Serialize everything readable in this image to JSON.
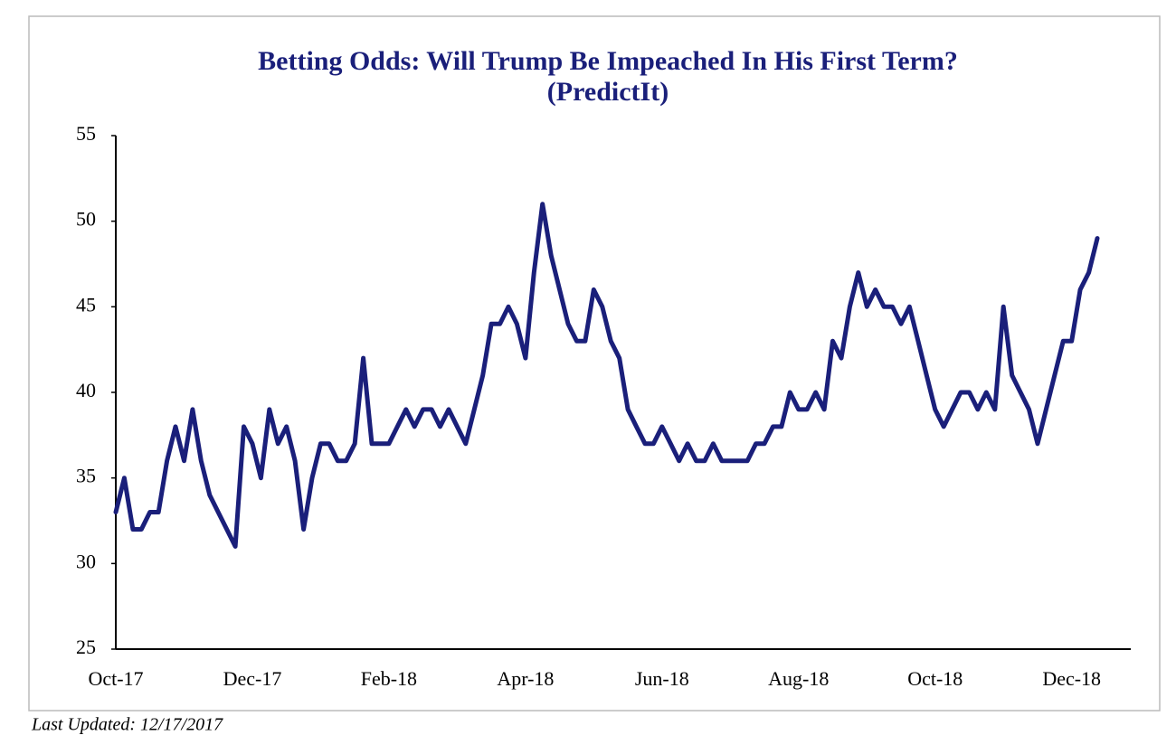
{
  "chart_data": {
    "type": "line",
    "title": "Betting Odds: Will Trump Be Impeached In His First Term?",
    "subtitle": "(PredictIt)",
    "footnote": "Last Updated: 12/17/2017",
    "categories": [
      "Oct-17",
      null,
      null,
      null,
      null,
      null,
      null,
      null,
      null,
      null,
      null,
      null,
      null,
      null,
      null,
      null,
      "Dec-17",
      null,
      null,
      null,
      null,
      null,
      null,
      null,
      null,
      null,
      null,
      null,
      null,
      null,
      null,
      null,
      "Feb-18",
      null,
      null,
      null,
      null,
      null,
      null,
      null,
      null,
      null,
      null,
      null,
      null,
      null,
      null,
      null,
      "Apr-18",
      null,
      null,
      null,
      null,
      null,
      null,
      null,
      null,
      null,
      null,
      null,
      null,
      null,
      null,
      null,
      "Jun-18",
      null,
      null,
      null,
      null,
      null,
      null,
      null,
      null,
      null,
      null,
      null,
      null,
      null,
      null,
      null,
      "Aug-18",
      null,
      null,
      null,
      null,
      null,
      null,
      null,
      null,
      null,
      null,
      null,
      null,
      null,
      null,
      null,
      "Oct-18",
      null,
      null,
      null,
      null,
      null,
      null,
      null,
      null,
      null,
      null,
      null,
      null,
      null,
      null,
      null,
      "Dec-18",
      null,
      null,
      null
    ],
    "series": [
      {
        "name": "PredictIt",
        "color": "#1a1f7a",
        "values": [
          33,
          35,
          32,
          32,
          33,
          33,
          36,
          38,
          36,
          39,
          36,
          34,
          33,
          32,
          31,
          38,
          37,
          35,
          39,
          37,
          38,
          36,
          32,
          35,
          37,
          37,
          36,
          36,
          37,
          42,
          37,
          37,
          37,
          38,
          39,
          38,
          39,
          39,
          38,
          39,
          38,
          37,
          39,
          41,
          44,
          44,
          45,
          44,
          42,
          47,
          51,
          48,
          46,
          44,
          43,
          43,
          46,
          45,
          43,
          42,
          39,
          38,
          37,
          37,
          38,
          37,
          36,
          37,
          36,
          36,
          37,
          36,
          36,
          36,
          36,
          37,
          37,
          38,
          38,
          40,
          39,
          39,
          40,
          39,
          43,
          42,
          45,
          47,
          45,
          46,
          45,
          45,
          44,
          45,
          43,
          41,
          39,
          38,
          39,
          40,
          40,
          39,
          40,
          39,
          45,
          41,
          40,
          39,
          37,
          39,
          41,
          43,
          43,
          46,
          47,
          49
        ]
      }
    ],
    "ylim": [
      25,
      55
    ],
    "yticks": [
      25,
      30,
      35,
      40,
      45,
      50,
      55
    ],
    "grid": false
  }
}
